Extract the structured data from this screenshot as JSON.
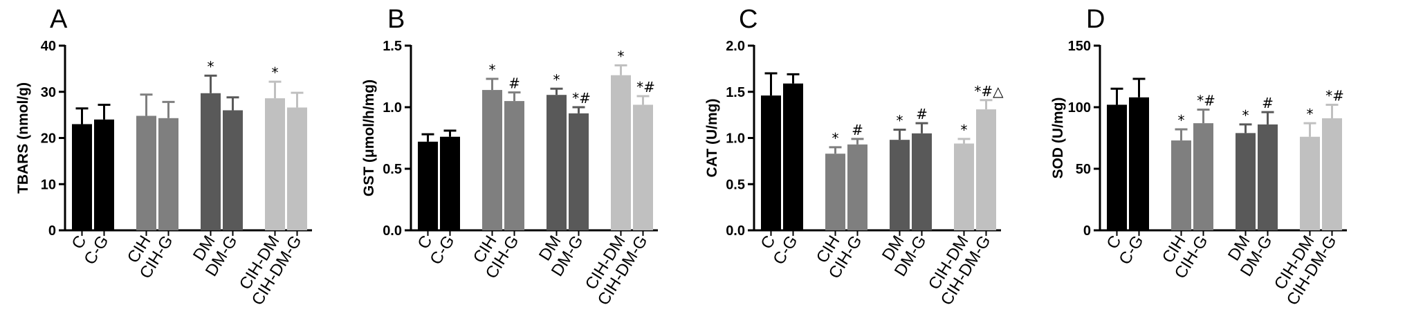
{
  "colors": {
    "C": "#000000",
    "C-G": "#000000",
    "CIH": "#7f7f7f",
    "CIH-G": "#7f7f7f",
    "DM": "#595959",
    "DM-G": "#595959",
    "CIH-DM": "#c0c0c0",
    "CIH-DM-G": "#c0c0c0"
  },
  "chart_data": [
    {
      "type": "bar",
      "panel": "A",
      "ylabel": "TBARS (nmol/g)",
      "ylim": [
        0,
        40
      ],
      "yticks": [
        0,
        10,
        20,
        30,
        40
      ],
      "yticklabels": [
        "0",
        "10",
        "20",
        "30",
        "40"
      ],
      "categories": [
        "C",
        "C-G",
        "CIH",
        "CIH-G",
        "DM",
        "DM-G",
        "CIH-DM",
        "CIH-DM-G"
      ],
      "values": [
        23.0,
        24.0,
        24.8,
        24.3,
        29.7,
        26.0,
        28.6,
        26.6
      ],
      "errors": [
        3.4,
        3.2,
        4.6,
        3.5,
        3.8,
        2.8,
        3.6,
        3.2
      ],
      "annotations": [
        "",
        "",
        "",
        "",
        "*",
        "",
        "*",
        ""
      ]
    },
    {
      "type": "bar",
      "panel": "B",
      "ylabel": "GST (μmol/h/mg)",
      "ylim": [
        0,
        1.5
      ],
      "yticks": [
        0,
        0.5,
        1.0,
        1.5
      ],
      "yticklabels": [
        "0.0",
        "0.5",
        "1.0",
        "1.5"
      ],
      "categories": [
        "C",
        "C-G",
        "CIH",
        "CIH-G",
        "DM",
        "DM-G",
        "CIH-DM",
        "CIH-DM-G"
      ],
      "values": [
        0.72,
        0.76,
        1.14,
        1.05,
        1.1,
        0.95,
        1.26,
        1.02
      ],
      "errors": [
        0.06,
        0.05,
        0.09,
        0.07,
        0.05,
        0.05,
        0.08,
        0.07
      ],
      "annotations": [
        "",
        "",
        "*",
        "#",
        "*",
        "*#",
        "*",
        "*#"
      ]
    },
    {
      "type": "bar",
      "panel": "C",
      "ylabel": "CAT (U/mg)",
      "ylim": [
        0,
        2.0
      ],
      "yticks": [
        0,
        0.5,
        1.0,
        1.5,
        2.0
      ],
      "yticklabels": [
        "0.0",
        "0.5",
        "1.0",
        "1.5",
        "2.0"
      ],
      "categories": [
        "C",
        "C-G",
        "CIH",
        "CIH-G",
        "DM",
        "DM-G",
        "CIH-DM",
        "CIH-DM-G"
      ],
      "values": [
        1.46,
        1.59,
        0.83,
        0.93,
        0.98,
        1.05,
        0.94,
        1.31
      ],
      "errors": [
        0.24,
        0.1,
        0.07,
        0.06,
        0.11,
        0.11,
        0.05,
        0.1
      ],
      "annotations": [
        "",
        "",
        "*",
        "#",
        "*",
        "#",
        "*",
        "*#△"
      ]
    },
    {
      "type": "bar",
      "panel": "D",
      "ylabel": "SOD (U/mg)",
      "ylim": [
        0,
        150
      ],
      "yticks": [
        0,
        50,
        100,
        150
      ],
      "yticklabels": [
        "0",
        "50",
        "100",
        "150"
      ],
      "categories": [
        "C",
        "C-G",
        "CIH",
        "CIH-G",
        "DM",
        "DM-G",
        "CIH-DM",
        "CIH-DM-G"
      ],
      "values": [
        102,
        108,
        73,
        87,
        79,
        86,
        76,
        91
      ],
      "errors": [
        13,
        15,
        9,
        11,
        7,
        10,
        11,
        11
      ],
      "annotations": [
        "",
        "",
        "*",
        "*#",
        "*",
        "#",
        "*",
        "*#"
      ]
    }
  ]
}
